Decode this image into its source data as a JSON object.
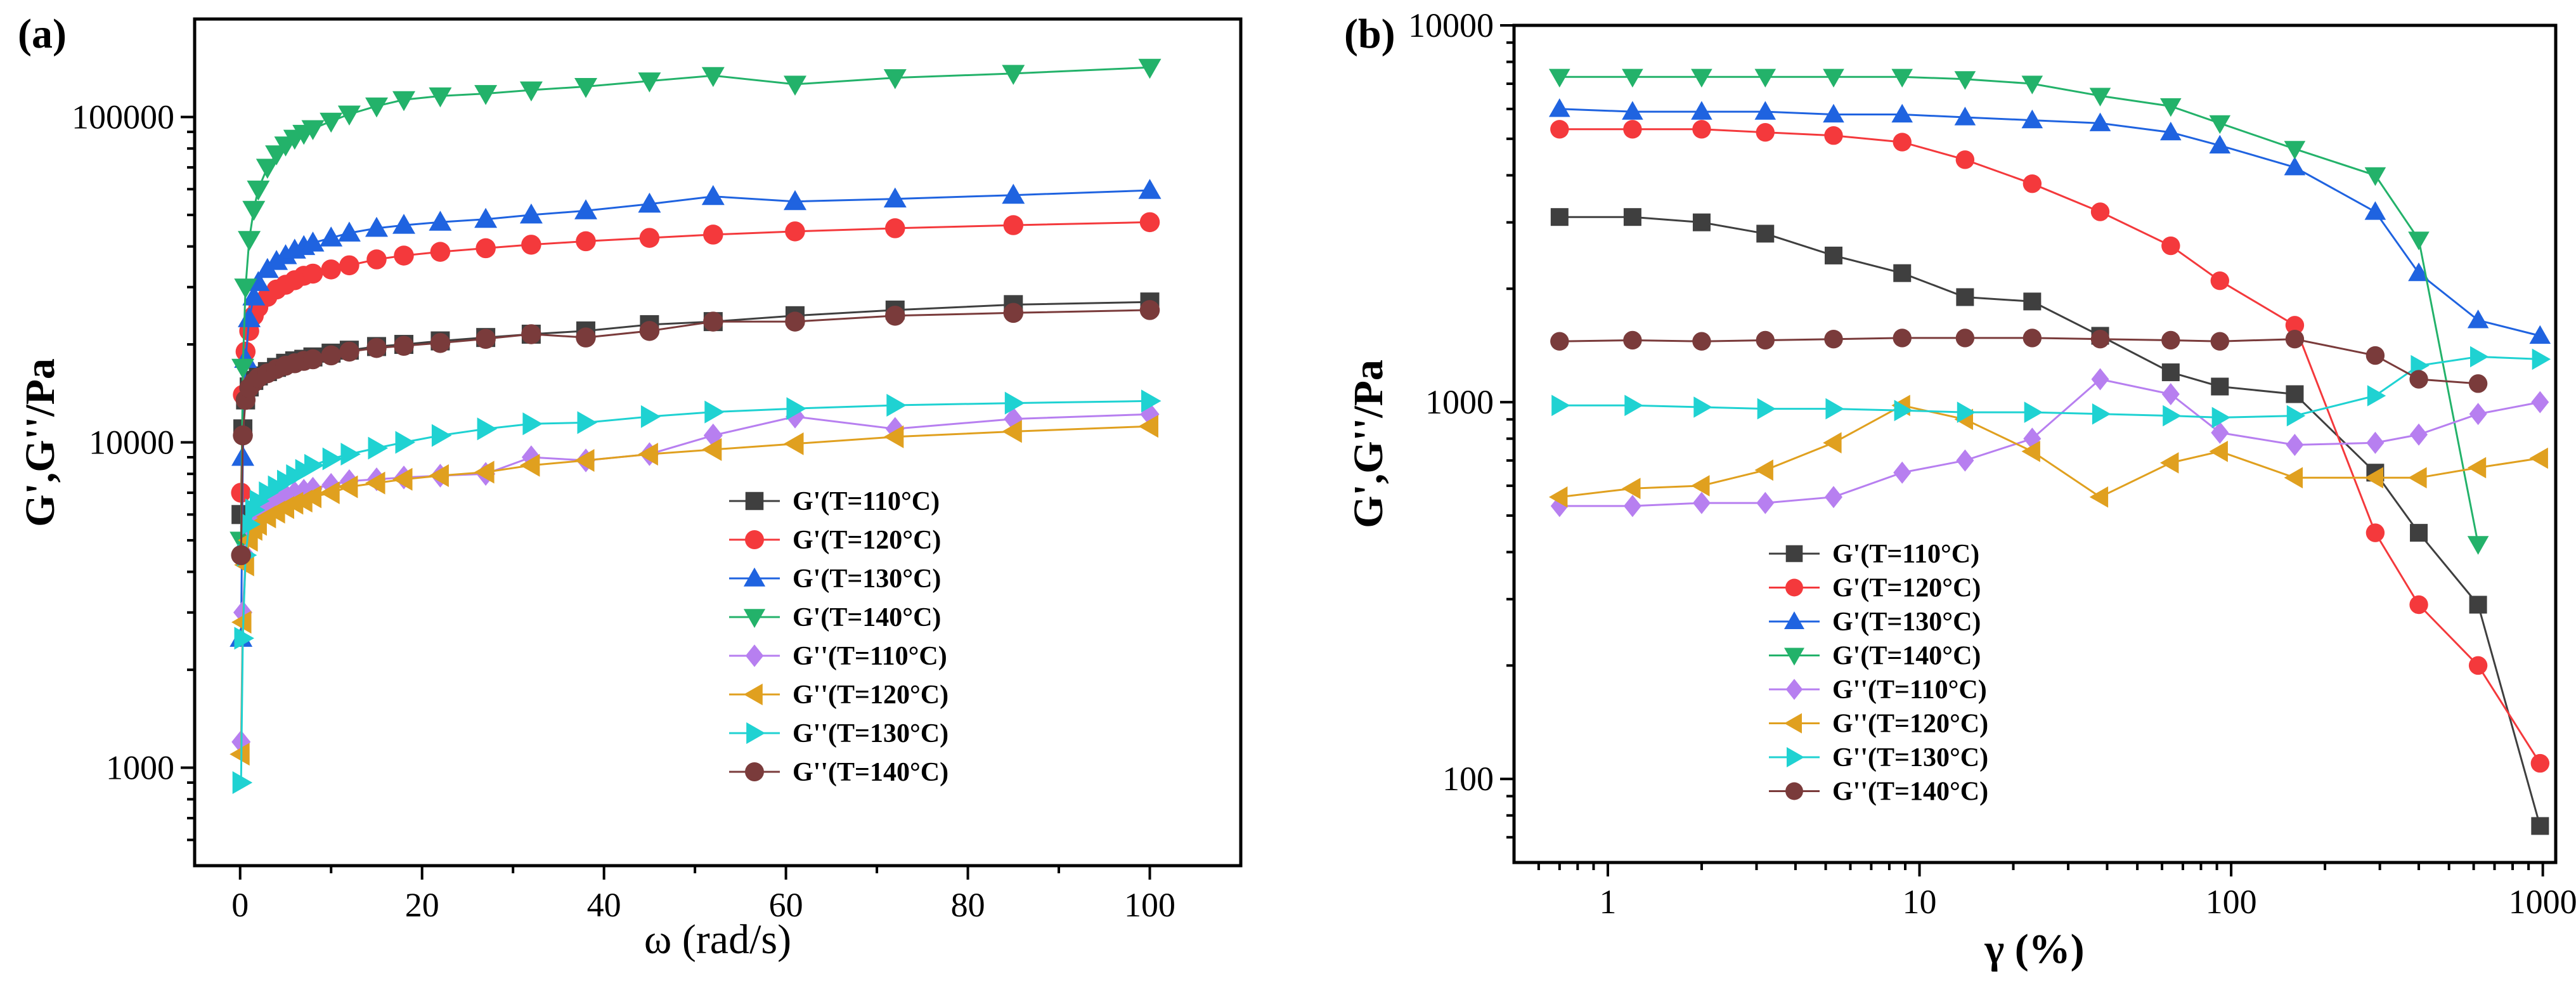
{
  "colors": {
    "s0": "#3f3f3f",
    "s1": "#f4393c",
    "s2": "#1f63e0",
    "s3": "#23b26a",
    "s4": "#b77ff0",
    "s5": "#e0a01f",
    "s6": "#1fd2d2",
    "s7": "#7a3b3b"
  },
  "chart_data": [
    {
      "type": "scatter",
      "panel_label": "(a)",
      "xscale": "linear",
      "yscale": "log",
      "xlabel": "ω (rad/s)",
      "ylabel": "G',G''/Pa",
      "xlim": [
        -5,
        110
      ],
      "ylim": [
        500,
        200000
      ],
      "xticks": [
        0,
        20,
        40,
        60,
        80,
        100
      ],
      "yticks": [
        1000,
        10000,
        100000
      ],
      "legend_position": "lower-right",
      "series": [
        {
          "name": "G'(T=110°C)",
          "marker": "square",
          "color_key": "s0",
          "x": [
            0.1,
            0.3,
            0.6,
            1,
            1.5,
            2,
            3,
            4,
            5,
            6,
            7,
            8,
            10,
            12,
            15,
            18,
            22,
            27,
            32,
            38,
            45,
            52,
            61,
            72,
            85,
            100
          ],
          "y": [
            6000,
            11000,
            13500,
            14800,
            15500,
            16000,
            16500,
            17000,
            17500,
            17800,
            18000,
            18300,
            18800,
            19200,
            19700,
            20000,
            20500,
            21000,
            21500,
            22000,
            23000,
            23500,
            24500,
            25500,
            26500,
            27000
          ]
        },
        {
          "name": "G'(T=120°C)",
          "marker": "circle",
          "color_key": "s1",
          "x": [
            0.1,
            0.3,
            0.6,
            1,
            1.5,
            2,
            3,
            4,
            5,
            6,
            7,
            8,
            10,
            12,
            15,
            18,
            22,
            27,
            32,
            38,
            45,
            52,
            61,
            72,
            85,
            100
          ],
          "y": [
            7000,
            14000,
            19000,
            22000,
            24500,
            26000,
            28000,
            29500,
            30500,
            31500,
            32500,
            33000,
            34000,
            35000,
            36500,
            37500,
            38500,
            39500,
            40500,
            41500,
            42500,
            43500,
            44500,
            45500,
            46500,
            47500
          ]
        },
        {
          "name": "G'(T=130°C)",
          "marker": "triangle-up",
          "color_key": "s2",
          "x": [
            0.1,
            0.3,
            0.6,
            1,
            1.5,
            2,
            3,
            4,
            5,
            6,
            7,
            8,
            10,
            12,
            15,
            18,
            22,
            27,
            32,
            38,
            45,
            52,
            61,
            72,
            85,
            100
          ],
          "y": [
            2500,
            9000,
            18000,
            24000,
            28000,
            31000,
            34000,
            36000,
            37500,
            39000,
            40000,
            41000,
            42500,
            44000,
            45500,
            46500,
            47500,
            48500,
            50000,
            51500,
            54000,
            57000,
            55000,
            56000,
            57500,
            59500
          ]
        },
        {
          "name": "G'(T=140°C)",
          "marker": "triangle-down",
          "color_key": "s3",
          "x": [
            0.1,
            0.3,
            0.6,
            1,
            1.5,
            2,
            3,
            4,
            5,
            6,
            7,
            8,
            10,
            12,
            15,
            18,
            22,
            27,
            32,
            38,
            45,
            52,
            61,
            72,
            85,
            100
          ],
          "y": [
            5000,
            17000,
            30000,
            42000,
            52000,
            60000,
            70000,
            77000,
            82000,
            86000,
            89000,
            92000,
            97000,
            102000,
            108000,
            113000,
            116000,
            118000,
            121000,
            124000,
            129000,
            134000,
            126000,
            132000,
            136000,
            142000
          ]
        },
        {
          "name": "G''(T=110°C)",
          "marker": "diamond",
          "color_key": "s4",
          "x": [
            0.1,
            0.3,
            0.6,
            1,
            1.5,
            2,
            3,
            4,
            5,
            6,
            7,
            8,
            10,
            12,
            15,
            18,
            22,
            27,
            32,
            38,
            45,
            52,
            61,
            72,
            85,
            100
          ],
          "y": [
            1200,
            3000,
            4500,
            5500,
            5900,
            6200,
            6500,
            6700,
            6900,
            7000,
            7100,
            7200,
            7400,
            7600,
            7700,
            7800,
            7900,
            8000,
            9000,
            8800,
            9200,
            10500,
            12000,
            11000,
            11800,
            12200
          ]
        },
        {
          "name": "G''(T=120°C)",
          "marker": "triangle-left",
          "color_key": "s5",
          "x": [
            0.1,
            0.3,
            0.6,
            1,
            1.5,
            2,
            3,
            4,
            5,
            6,
            7,
            8,
            10,
            12,
            15,
            18,
            22,
            27,
            32,
            38,
            45,
            52,
            61,
            72,
            85,
            100
          ],
          "y": [
            1100,
            2800,
            4200,
            5000,
            5400,
            5600,
            5900,
            6100,
            6300,
            6500,
            6600,
            6800,
            7000,
            7300,
            7500,
            7700,
            7900,
            8100,
            8500,
            8800,
            9200,
            9500,
            9900,
            10400,
            10800,
            11200
          ]
        },
        {
          "name": "G''(T=130°C)",
          "marker": "triangle-right",
          "color_key": "s6",
          "x": [
            0.1,
            0.3,
            0.6,
            1,
            1.5,
            2,
            3,
            4,
            5,
            6,
            7,
            8,
            10,
            12,
            15,
            18,
            22,
            27,
            32,
            38,
            45,
            52,
            61,
            72,
            85,
            100
          ],
          "y": [
            900,
            2500,
            4500,
            5600,
            6200,
            6600,
            7000,
            7300,
            7600,
            7900,
            8200,
            8500,
            8900,
            9200,
            9600,
            10000,
            10500,
            11000,
            11400,
            11500,
            12000,
            12400,
            12700,
            13000,
            13200,
            13400
          ]
        },
        {
          "name": "G''(T=140°C)",
          "marker": "circle",
          "color_key": "s7",
          "x": [
            0.1,
            0.3,
            0.6,
            1,
            1.5,
            2,
            3,
            4,
            5,
            6,
            7,
            8,
            10,
            12,
            15,
            18,
            22,
            27,
            32,
            38,
            45,
            52,
            61,
            72,
            85,
            100
          ],
          "y": [
            4500,
            10500,
            13500,
            14700,
            15300,
            15800,
            16300,
            16800,
            17200,
            17500,
            17800,
            18000,
            18500,
            19000,
            19500,
            19800,
            20200,
            20800,
            21500,
            21000,
            22000,
            23500,
            23500,
            24500,
            25000,
            25500
          ]
        }
      ]
    },
    {
      "type": "scatter",
      "panel_label": "(b)",
      "xscale": "log",
      "yscale": "log",
      "xlabel": "γ (%)",
      "ylabel": "G',G''/Pa",
      "xlim": [
        0.5,
        1100
      ],
      "ylim": [
        60,
        10000
      ],
      "xticks": [
        1,
        10,
        100,
        1000
      ],
      "yticks": [
        100,
        1000,
        10000
      ],
      "legend_position": "lower-left",
      "series": [
        {
          "name": "G'(T=110°C)",
          "marker": "square",
          "color_key": "s0",
          "x": [
            0.7,
            1.2,
            2,
            3.2,
            5.3,
            8.8,
            14,
            23,
            38,
            64,
            92,
            160,
            290,
            400,
            620,
            980
          ],
          "y": [
            3100,
            3100,
            3000,
            2800,
            2450,
            2200,
            1900,
            1850,
            1500,
            1200,
            1100,
            1050,
            650,
            450,
            290,
            75
          ]
        },
        {
          "name": "G'(T=120°C)",
          "marker": "circle",
          "color_key": "s1",
          "x": [
            0.7,
            1.2,
            2,
            3.2,
            5.3,
            8.8,
            14,
            23,
            38,
            64,
            92,
            160,
            290,
            400,
            620,
            980
          ],
          "y": [
            5300,
            5300,
            5300,
            5200,
            5100,
            4900,
            4400,
            3800,
            3200,
            2600,
            2100,
            1600,
            450,
            290,
            200,
            110
          ]
        },
        {
          "name": "G'(T=130°C)",
          "marker": "triangle-up",
          "color_key": "s2",
          "x": [
            0.7,
            1.2,
            2,
            3.2,
            5.3,
            8.8,
            14,
            23,
            38,
            64,
            92,
            160,
            290,
            400,
            620,
            980
          ],
          "y": [
            6000,
            5900,
            5900,
            5900,
            5800,
            5800,
            5700,
            5600,
            5500,
            5200,
            4800,
            4200,
            3200,
            2200,
            1650,
            1500
          ]
        },
        {
          "name": "G'(T=140°C)",
          "marker": "triangle-down",
          "color_key": "s3",
          "x": [
            0.7,
            1.2,
            2,
            3.2,
            5.3,
            8.8,
            14,
            23,
            38,
            64,
            92,
            160,
            290,
            400,
            620
          ],
          "y": [
            7300,
            7300,
            7300,
            7300,
            7300,
            7300,
            7200,
            7000,
            6500,
            6100,
            5500,
            4700,
            4000,
            2700,
            420
          ]
        },
        {
          "name": "G''(T=110°C)",
          "marker": "diamond",
          "color_key": "s4",
          "x": [
            0.7,
            1.2,
            2,
            3.2,
            5.3,
            8.8,
            14,
            23,
            38,
            64,
            92,
            160,
            290,
            400,
            620,
            980
          ],
          "y": [
            530,
            530,
            540,
            540,
            560,
            650,
            700,
            800,
            1150,
            1050,
            830,
            770,
            780,
            820,
            930,
            1000
          ]
        },
        {
          "name": "G''(T=120°C)",
          "marker": "triangle-left",
          "color_key": "s5",
          "x": [
            0.7,
            1.2,
            2,
            3.2,
            5.3,
            8.8,
            14,
            23,
            38,
            64,
            92,
            160,
            290,
            400,
            620,
            980
          ],
          "y": [
            560,
            590,
            600,
            660,
            780,
            980,
            900,
            740,
            560,
            690,
            740,
            630,
            630,
            630,
            670,
            710
          ]
        },
        {
          "name": "G''(T=130°C)",
          "marker": "triangle-right",
          "color_key": "s6",
          "x": [
            0.7,
            1.2,
            2,
            3.2,
            5.3,
            8.8,
            14,
            23,
            38,
            64,
            92,
            160,
            290,
            400,
            620,
            980
          ],
          "y": [
            980,
            980,
            970,
            960,
            960,
            950,
            940,
            940,
            930,
            920,
            910,
            920,
            1040,
            1250,
            1320,
            1300
          ]
        },
        {
          "name": "G''(T=140°C)",
          "marker": "circle",
          "color_key": "s7",
          "x": [
            0.7,
            1.2,
            2,
            3.2,
            5.3,
            8.8,
            14,
            23,
            38,
            64,
            92,
            160,
            290,
            400,
            620
          ],
          "y": [
            1450,
            1460,
            1450,
            1460,
            1470,
            1480,
            1480,
            1480,
            1470,
            1460,
            1450,
            1470,
            1330,
            1150,
            1120
          ]
        }
      ]
    }
  ]
}
